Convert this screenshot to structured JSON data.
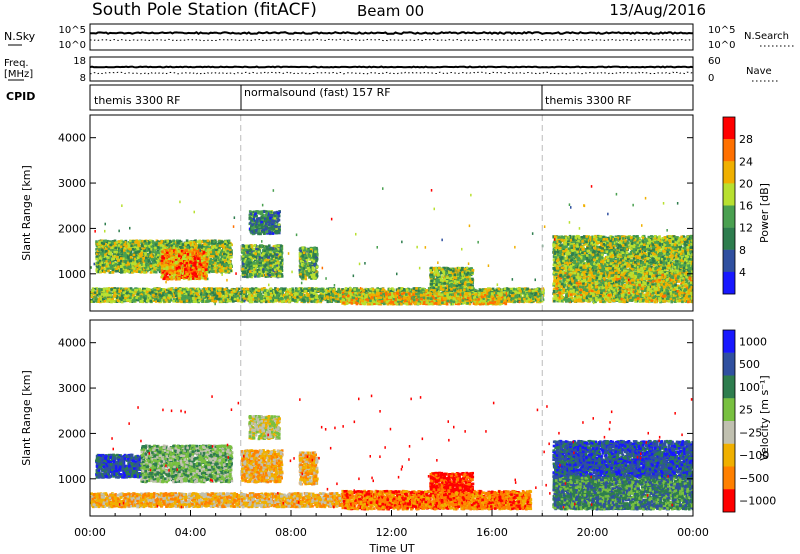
{
  "header": {
    "title": "South Pole Station (fitACF)",
    "beam": "Beam 00",
    "date": "13/Aug/2016"
  },
  "noise_panel": {
    "left_label": "N.Sky",
    "left_ticks": [
      "10^5",
      "10^0"
    ],
    "right_label": "N.Search",
    "right_ticks": [
      "10^5",
      "10^0"
    ]
  },
  "freq_panel": {
    "left_label_1": "Freq.",
    "left_label_2": "[MHz]",
    "left_ticks": [
      "18",
      "8"
    ],
    "right_label": "Nave",
    "right_ticks": [
      "60",
      "0"
    ]
  },
  "cpid": {
    "label": "CPID",
    "segments": [
      {
        "name": "themis 3300 RF",
        "start_hour": 0,
        "end_hour": 6
      },
      {
        "name": "normalsound (fast) 157 RF",
        "start_hour": 6,
        "end_hour": 18
      },
      {
        "name": "themis 3300 RF",
        "start_hour": 18,
        "end_hour": 24
      }
    ]
  },
  "colors": {
    "power": [
      "#1818ff",
      "#3050a0",
      "#2e7d4e",
      "#4aa050",
      "#b8e030",
      "#f0b000",
      "#ff7000",
      "#ff0000"
    ],
    "velocity": [
      "#1818ff",
      "#3050a0",
      "#2e7d4e",
      "#78c040",
      "#c0c0b0",
      "#f0b000",
      "#ff8000",
      "#ff0000"
    ]
  },
  "chart_data": [
    {
      "type": "heatmap",
      "name": "power",
      "xlabel": "",
      "ylabel": "Slant Range [km]",
      "xlim": [
        0,
        24
      ],
      "ylim": [
        180,
        4500
      ],
      "y_ticks": [
        1000,
        2000,
        3000,
        4000
      ],
      "colorbar_label": "Power [dB]",
      "colorbar_ticks": [
        4,
        8,
        12,
        16,
        20,
        24,
        28
      ],
      "colorbar_range": [
        0,
        32
      ],
      "echo_regions": [
        {
          "t0": 0.2,
          "t1": 5.6,
          "r0": 1000,
          "r1": 1700,
          "level": 16
        },
        {
          "t0": 2.8,
          "t1": 4.6,
          "r0": 850,
          "r1": 1500,
          "level": 24
        },
        {
          "t0": 3.7,
          "t1": 4.2,
          "r0": 900,
          "r1": 1250,
          "level": 28
        },
        {
          "t0": 6.0,
          "t1": 7.6,
          "r0": 900,
          "r1": 1600,
          "level": 14
        },
        {
          "t0": 6.3,
          "t1": 7.5,
          "r0": 1850,
          "r1": 2350,
          "level": 10
        },
        {
          "t0": 8.3,
          "t1": 9.0,
          "r0": 850,
          "r1": 1550,
          "level": 14
        },
        {
          "t0": 0.0,
          "t1": 18.0,
          "r0": 350,
          "r1": 650,
          "level": 16
        },
        {
          "t0": 10.0,
          "t1": 16.5,
          "r0": 300,
          "r1": 550,
          "level": 20
        },
        {
          "t0": 13.5,
          "t1": 15.2,
          "r0": 600,
          "r1": 1100,
          "level": 16
        },
        {
          "t0": 18.4,
          "t1": 24.0,
          "r0": 900,
          "r1": 1800,
          "level": 16
        },
        {
          "t0": 18.4,
          "t1": 24.0,
          "r0": 350,
          "r1": 1000,
          "level": 18
        }
      ]
    },
    {
      "type": "heatmap",
      "name": "velocity",
      "xlabel": "Time UT",
      "ylabel": "Slant Range [km]",
      "xlim": [
        0,
        24
      ],
      "ylim": [
        180,
        4500
      ],
      "x_ticks": [
        "00:00",
        "04:00",
        "08:00",
        "12:00",
        "16:00",
        "20:00",
        "00:00"
      ],
      "y_ticks": [
        1000,
        2000,
        3000,
        4000
      ],
      "colorbar_label": "Velocity [m s⁻¹]",
      "colorbar_ticks": [
        "1000",
        "500",
        "100",
        "25",
        "−25",
        "−100",
        "−500",
        "−1000"
      ],
      "echo_regions": [
        {
          "t0": 0.2,
          "t1": 2.0,
          "r0": 1000,
          "r1": 1500,
          "level": 1
        },
        {
          "t0": 2.0,
          "t1": 5.6,
          "r0": 900,
          "r1": 1700,
          "level": 3
        },
        {
          "t0": 6.0,
          "t1": 7.6,
          "r0": 900,
          "r1": 1600,
          "level": 5
        },
        {
          "t0": 6.3,
          "t1": 7.5,
          "r0": 1850,
          "r1": 2350,
          "level": 4
        },
        {
          "t0": 8.3,
          "t1": 9.0,
          "r0": 850,
          "r1": 1550,
          "level": 5
        },
        {
          "t0": 0.0,
          "t1": 10.0,
          "r0": 350,
          "r1": 650,
          "level": 5
        },
        {
          "t0": 10.0,
          "t1": 17.5,
          "r0": 300,
          "r1": 700,
          "level": 6
        },
        {
          "t0": 13.5,
          "t1": 15.2,
          "r0": 700,
          "r1": 1100,
          "level": 7
        },
        {
          "t0": 18.4,
          "t1": 24.0,
          "r0": 1000,
          "r1": 1800,
          "level": 1
        },
        {
          "t0": 18.4,
          "t1": 24.0,
          "r0": 300,
          "r1": 1000,
          "level": 2
        }
      ]
    }
  ]
}
